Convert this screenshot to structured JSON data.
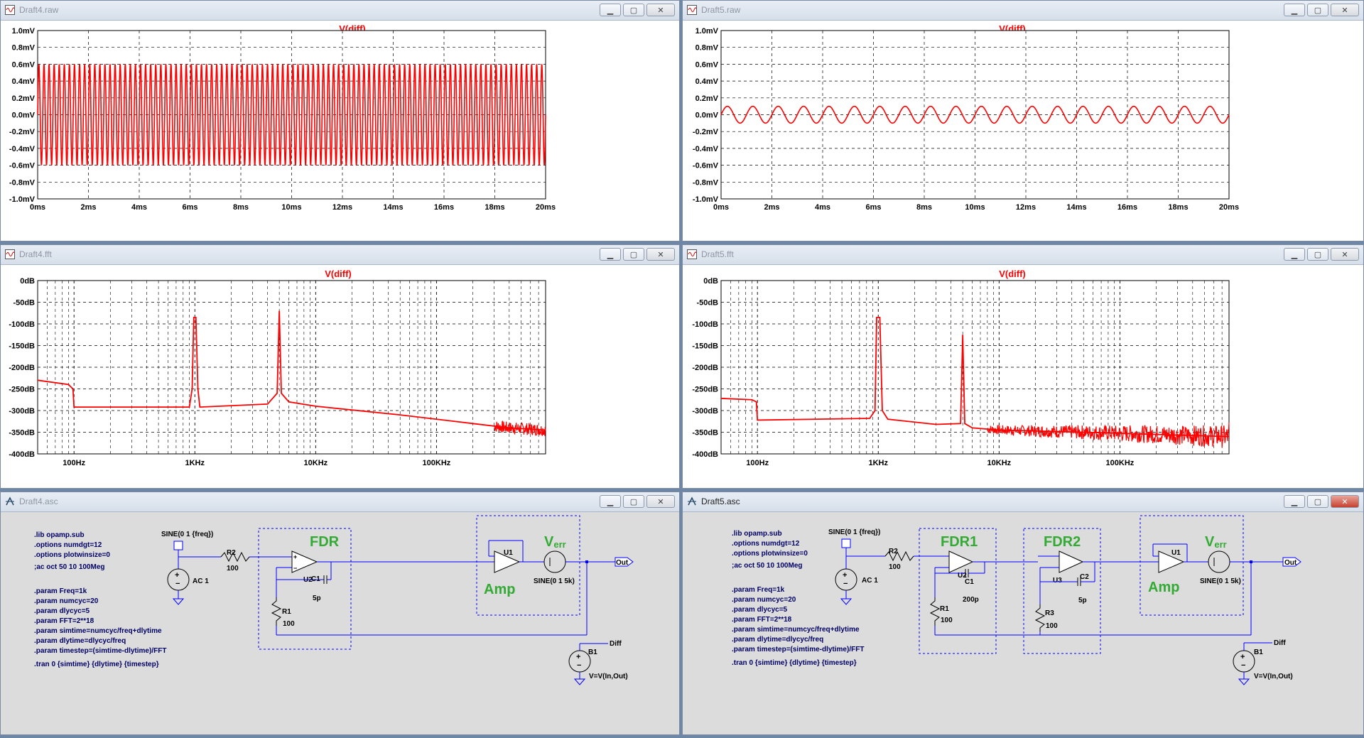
{
  "colors": {
    "trace": "#ff0000",
    "axis": "#000000",
    "grid": "#000000",
    "wire": "#0000ff",
    "box": "#0000ff",
    "green": "#33aa33",
    "dark": "#000066"
  },
  "windows": [
    {
      "id": "w1",
      "title": "Draft4.raw",
      "kind": "raw"
    },
    {
      "id": "w2",
      "title": "Draft5.raw",
      "kind": "raw"
    },
    {
      "id": "w3",
      "title": "Draft4.fft",
      "kind": "fft"
    },
    {
      "id": "w4",
      "title": "Draft5.fft",
      "kind": "fft"
    },
    {
      "id": "w5",
      "title": "Draft4.asc",
      "kind": "asc"
    },
    {
      "id": "w6",
      "title": "Draft5.asc",
      "kind": "asc"
    }
  ],
  "raw_axes": {
    "trace_label": "V(diff)",
    "y_ticks": [
      "1.0mV",
      "0.8mV",
      "0.6mV",
      "0.4mV",
      "0.2mV",
      "0.0mV",
      "-0.2mV",
      "-0.4mV",
      "-0.6mV",
      "-0.8mV",
      "-1.0mV"
    ],
    "x_ticks": [
      "0ms",
      "2ms",
      "4ms",
      "6ms",
      "8ms",
      "10ms",
      "12ms",
      "14ms",
      "16ms",
      "18ms",
      "20ms"
    ]
  },
  "fft_axes": {
    "trace_label": "V(diff)",
    "y_ticks": [
      "0dB",
      "-50dB",
      "-100dB",
      "-150dB",
      "-200dB",
      "-250dB",
      "-300dB",
      "-350dB",
      "-400dB"
    ],
    "x_ticks": [
      "100Hz",
      "1KHz",
      "10KHz",
      "100KHz"
    ]
  },
  "chart_data": [
    {
      "type": "line",
      "title": "V(diff)",
      "source": "Draft4.raw",
      "xlabel": "",
      "ylabel": "",
      "xlim": [
        0,
        20
      ],
      "x_unit": "ms",
      "ylim": [
        -1.0,
        1.0
      ],
      "y_unit": "mV",
      "grid": true,
      "series": [
        {
          "name": "V(diff)",
          "description": "sinusoid",
          "amplitude_mV": 0.6,
          "frequency_kHz": 5,
          "cycles_shown": 100
        }
      ]
    },
    {
      "type": "line",
      "title": "V(diff)",
      "source": "Draft5.raw",
      "xlabel": "",
      "ylabel": "",
      "xlim": [
        0,
        20
      ],
      "x_unit": "ms",
      "ylim": [
        -1.0,
        1.0
      ],
      "y_unit": "mV",
      "grid": true,
      "series": [
        {
          "name": "V(diff)",
          "description": "sinusoid",
          "amplitude_mV": 0.1,
          "frequency_kHz": 1,
          "cycles_shown": 20
        }
      ]
    },
    {
      "type": "line",
      "title": "V(diff)",
      "source": "Draft4.fft",
      "x_scale": "log",
      "xlim_hz": [
        50,
        800000
      ],
      "ylim_db": [
        -400,
        0
      ],
      "grid": true,
      "series": [
        {
          "name": "V(diff)",
          "points": [
            [
              50,
              -230
            ],
            [
              90,
              -240
            ],
            [
              98,
              -250
            ],
            [
              100,
              -292
            ],
            [
              900,
              -292
            ],
            [
              950,
              -250
            ],
            [
              980,
              -85
            ],
            [
              1020,
              -85
            ],
            [
              1060,
              -250
            ],
            [
              1100,
              -292
            ],
            [
              4000,
              -285
            ],
            [
              4800,
              -260
            ],
            [
              5000,
              -70
            ],
            [
              5200,
              -260
            ],
            [
              6000,
              -280
            ],
            [
              10000,
              -290
            ],
            [
              50000,
              -310
            ],
            [
              200000,
              -330
            ],
            [
              400000,
              -340
            ],
            [
              800000,
              -345
            ]
          ]
        }
      ]
    },
    {
      "type": "line",
      "title": "V(diff)",
      "source": "Draft5.fft",
      "x_scale": "log",
      "xlim_hz": [
        50,
        800000
      ],
      "ylim_db": [
        -400,
        0
      ],
      "grid": true,
      "series": [
        {
          "name": "V(diff)",
          "points": [
            [
              50,
              -272
            ],
            [
              90,
              -275
            ],
            [
              98,
              -280
            ],
            [
              100,
              -322
            ],
            [
              850,
              -318
            ],
            [
              940,
              -300
            ],
            [
              970,
              -85
            ],
            [
              1030,
              -85
            ],
            [
              1080,
              -300
            ],
            [
              1200,
              -320
            ],
            [
              3000,
              -332
            ],
            [
              4800,
              -330
            ],
            [
              5000,
              -125
            ],
            [
              5200,
              -330
            ],
            [
              6000,
              -340
            ],
            [
              10000,
              -345
            ],
            [
              50000,
              -350
            ],
            [
              200000,
              -355
            ],
            [
              800000,
              -360
            ]
          ]
        }
      ]
    }
  ],
  "schem4": {
    "directives": [
      ".lib opamp.sub",
      ".options numdgt=12",
      ".options plotwinsize=0"
    ],
    "ac": ";ac oct 50 10 100Meg",
    "params": [
      ".param Freq=1k",
      ".param numcyc=20",
      ".param dlycyc=5",
      ".param FFT=2**18",
      ".param simtime=numcyc/freq+dlytime",
      ".param dlytime=dlycyc/freq",
      ".param timestep=(simtime-dlytime)/FFT"
    ],
    "tran": ".tran 0 {simtime} {dlytime} {timestep}",
    "sine": "SINE(0 1 {freq})",
    "ac1": "AC 1",
    "r2": "R2",
    "r2v": "100",
    "u2": "U2",
    "c1": "C1",
    "c1v": "5p",
    "r1": "R1",
    "r1v": "100",
    "fdr": "FDR",
    "amp": "Amp",
    "verr_v": "V",
    "verr_sub": "err",
    "u1": "U1",
    "sine5k": "SINE(0 1 5k)",
    "out": "Out",
    "diff": "Diff",
    "b1": "B1",
    "bv": "V=V(In,Out)"
  },
  "schem5": {
    "directives": [
      ".lib opamp.sub",
      ".options numdgt=12",
      ".options plotwinsize=0"
    ],
    "ac": ";ac oct 50 10 100Meg",
    "params": [
      ".param Freq=1k",
      ".param numcyc=20",
      ".param dlycyc=5",
      ".param FFT=2**18",
      ".param simtime=numcyc/freq+dlytime",
      ".param dlytime=dlycyc/freq",
      ".param timestep=(simtime-dlytime)/FFT"
    ],
    "tran": ".tran 0 {simtime} {dlytime} {timestep}",
    "sine": "SINE(0 1 {freq})",
    "ac1": "AC 1",
    "r2": "R2",
    "r2v": "100",
    "u2": "U2",
    "c1": "C1",
    "c1v": "200p",
    "r1": "R1",
    "r1v": "100",
    "u3": "U3",
    "c2": "C2",
    "c2v": "5p",
    "r3": "R3",
    "r3v": "100",
    "fdr1": "FDR1",
    "fdr2": "FDR2",
    "amp": "Amp",
    "verr_v": "V",
    "verr_sub": "err",
    "u1": "U1",
    "sine5k": "SINE(0 1 5k)",
    "out": "Out",
    "diff": "Diff",
    "b1": "B1",
    "bv": "V=V(In,Out)"
  }
}
